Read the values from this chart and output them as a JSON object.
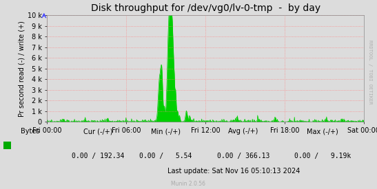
{
  "title": "Disk throughput for /dev/vg0/lv-0-tmp  -  by day",
  "ylabel": "Pr second read (-) / write (+)",
  "xlabel_ticks": [
    "Fri 00:00",
    "Fri 06:00",
    "Fri 12:00",
    "Fri 18:00",
    "Sat 00:00"
  ],
  "ytick_labels": [
    "0",
    "1 k",
    "2 k",
    "3 k",
    "4 k",
    "5 k",
    "6 k",
    "7 k",
    "8 k",
    "9 k",
    "10 k"
  ],
  "ytick_values": [
    0,
    1000,
    2000,
    3000,
    4000,
    5000,
    6000,
    7000,
    8000,
    9000,
    10000
  ],
  "ylim": [
    0,
    10000
  ],
  "background_color": "#dcdcdc",
  "plot_bg_color": "#dcdcdc",
  "grid_color": "#ff8080",
  "line_color": "#00cf00",
  "fill_color": "#00cf00",
  "legend_label": "Bytes",
  "legend_color": "#00aa00",
  "cur_label": "Cur (-/+)",
  "min_label": "Min (-/+)",
  "avg_label": "Avg (-/+)",
  "max_label": "Max (-/+)",
  "cur_val": "0.00 / 192.34",
  "min_val": "0.00 /   5.54",
  "avg_val": "0.00 / 366.13",
  "max_val": "0.00 /   9.19k",
  "last_update": "Last update: Sat Nov 16 05:10:13 2024",
  "munin_version": "Munin 2.0.56",
  "watermark": "RRDTOOL / TOBI OETIKER",
  "title_fontsize": 10,
  "tick_fontsize": 7,
  "legend_fontsize": 7,
  "ylabel_fontsize": 7
}
